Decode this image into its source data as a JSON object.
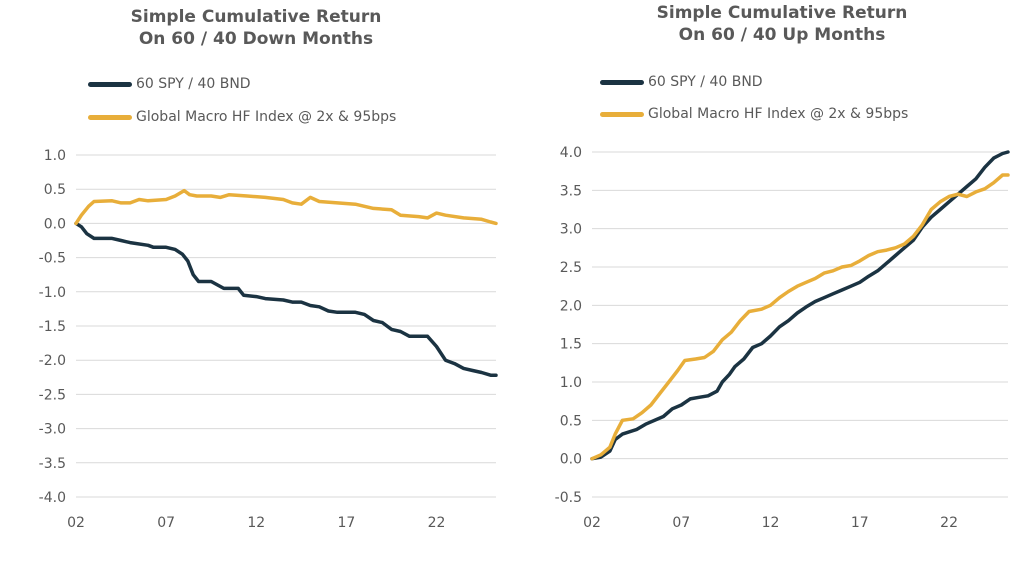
{
  "colors": {
    "navy": "#1b3342",
    "gold": "#e8ae3a",
    "grid": "#d9d9d9",
    "text": "#595959"
  },
  "chart_data": [
    {
      "type": "line",
      "title": "Simple Cumulative Return",
      "subtitle": "On 60 / 40 Down Months",
      "xlabel": "",
      "ylabel": "",
      "xticks": [
        "02",
        "07",
        "12",
        "17",
        "22"
      ],
      "xlim": [
        2,
        25.3
      ],
      "ylim": [
        -4.0,
        1.0
      ],
      "yticks": [
        "1.0",
        "0.5",
        "0.0",
        "-0.5",
        "-1.0",
        "-1.5",
        "-2.0",
        "-2.5",
        "-3.0",
        "-3.5",
        "-4.0"
      ],
      "grid": true,
      "legend_position": "top-left",
      "series": [
        {
          "name": "60 SPY / 40 BND",
          "color": "#1b3342",
          "points": [
            [
              2.0,
              0.0
            ],
            [
              2.3,
              -0.05
            ],
            [
              2.6,
              -0.15
            ],
            [
              3.0,
              -0.22
            ],
            [
              4.0,
              -0.22
            ],
            [
              4.5,
              -0.25
            ],
            [
              5.0,
              -0.28
            ],
            [
              6.0,
              -0.32
            ],
            [
              6.3,
              -0.35
            ],
            [
              7.0,
              -0.35
            ],
            [
              7.5,
              -0.38
            ],
            [
              7.9,
              -0.45
            ],
            [
              8.2,
              -0.55
            ],
            [
              8.5,
              -0.75
            ],
            [
              8.8,
              -0.85
            ],
            [
              9.5,
              -0.85
            ],
            [
              10.2,
              -0.95
            ],
            [
              11.0,
              -0.95
            ],
            [
              11.3,
              -1.05
            ],
            [
              12.0,
              -1.07
            ],
            [
              12.5,
              -1.1
            ],
            [
              13.5,
              -1.12
            ],
            [
              14.0,
              -1.15
            ],
            [
              14.5,
              -1.15
            ],
            [
              15.0,
              -1.2
            ],
            [
              15.5,
              -1.22
            ],
            [
              16.0,
              -1.28
            ],
            [
              16.5,
              -1.3
            ],
            [
              17.5,
              -1.3
            ],
            [
              18.0,
              -1.33
            ],
            [
              18.5,
              -1.42
            ],
            [
              19.0,
              -1.45
            ],
            [
              19.5,
              -1.55
            ],
            [
              20.0,
              -1.58
            ],
            [
              20.5,
              -1.65
            ],
            [
              21.5,
              -1.65
            ],
            [
              22.0,
              -1.8
            ],
            [
              22.5,
              -2.0
            ],
            [
              23.0,
              -2.05
            ],
            [
              23.5,
              -2.12
            ],
            [
              24.0,
              -2.15
            ],
            [
              24.5,
              -2.18
            ],
            [
              25.0,
              -2.22
            ],
            [
              25.3,
              -2.22
            ]
          ]
        },
        {
          "name": "Global Macro HF Index @ 2x & 95bps",
          "color": "#e8ae3a",
          "points": [
            [
              2.0,
              0.0
            ],
            [
              2.3,
              0.12
            ],
            [
              2.7,
              0.25
            ],
            [
              3.0,
              0.32
            ],
            [
              4.0,
              0.33
            ],
            [
              4.5,
              0.3
            ],
            [
              5.0,
              0.3
            ],
            [
              5.5,
              0.35
            ],
            [
              6.0,
              0.33
            ],
            [
              7.0,
              0.35
            ],
            [
              7.5,
              0.4
            ],
            [
              8.0,
              0.48
            ],
            [
              8.3,
              0.42
            ],
            [
              8.7,
              0.4
            ],
            [
              9.5,
              0.4
            ],
            [
              10.0,
              0.38
            ],
            [
              10.5,
              0.42
            ],
            [
              11.5,
              0.4
            ],
            [
              12.5,
              0.38
            ],
            [
              13.5,
              0.35
            ],
            [
              14.0,
              0.3
            ],
            [
              14.5,
              0.28
            ],
            [
              15.0,
              0.38
            ],
            [
              15.5,
              0.32
            ],
            [
              16.5,
              0.3
            ],
            [
              17.5,
              0.28
            ],
            [
              18.5,
              0.22
            ],
            [
              19.5,
              0.2
            ],
            [
              20.0,
              0.12
            ],
            [
              21.0,
              0.1
            ],
            [
              21.5,
              0.08
            ],
            [
              22.0,
              0.15
            ],
            [
              22.5,
              0.12
            ],
            [
              23.5,
              0.08
            ],
            [
              24.5,
              0.06
            ],
            [
              25.0,
              0.02
            ],
            [
              25.3,
              0.0
            ]
          ]
        }
      ]
    },
    {
      "type": "line",
      "title": "Simple Cumulative Return",
      "subtitle": "On 60 / 40 Up Months",
      "xlabel": "",
      "ylabel": "",
      "xticks": [
        "02",
        "07",
        "12",
        "17",
        "22"
      ],
      "xlim": [
        2,
        25.3
      ],
      "ylim": [
        -0.5,
        4.0
      ],
      "yticks": [
        "4.0",
        "3.5",
        "3.0",
        "2.5",
        "2.0",
        "1.5",
        "1.0",
        "0.5",
        "0.0",
        "-0.5"
      ],
      "grid": true,
      "legend_position": "top-left",
      "series": [
        {
          "name": "60 SPY / 40 BND",
          "color": "#1b3342",
          "points": [
            [
              2.0,
              0.0
            ],
            [
              2.5,
              0.02
            ],
            [
              3.0,
              0.1
            ],
            [
              3.3,
              0.25
            ],
            [
              3.7,
              0.32
            ],
            [
              4.5,
              0.38
            ],
            [
              5.0,
              0.45
            ],
            [
              6.0,
              0.55
            ],
            [
              6.5,
              0.65
            ],
            [
              7.0,
              0.7
            ],
            [
              7.5,
              0.78
            ],
            [
              8.0,
              0.8
            ],
            [
              8.5,
              0.82
            ],
            [
              9.0,
              0.88
            ],
            [
              9.3,
              1.0
            ],
            [
              9.7,
              1.1
            ],
            [
              10.0,
              1.2
            ],
            [
              10.5,
              1.3
            ],
            [
              11.0,
              1.45
            ],
            [
              11.5,
              1.5
            ],
            [
              12.0,
              1.6
            ],
            [
              12.5,
              1.72
            ],
            [
              13.0,
              1.8
            ],
            [
              13.5,
              1.9
            ],
            [
              14.0,
              1.98
            ],
            [
              14.5,
              2.05
            ],
            [
              15.0,
              2.1
            ],
            [
              15.5,
              2.15
            ],
            [
              16.0,
              2.2
            ],
            [
              16.5,
              2.25
            ],
            [
              17.0,
              2.3
            ],
            [
              17.5,
              2.38
            ],
            [
              18.0,
              2.45
            ],
            [
              18.5,
              2.55
            ],
            [
              19.0,
              2.65
            ],
            [
              19.5,
              2.75
            ],
            [
              20.0,
              2.85
            ],
            [
              20.5,
              3.02
            ],
            [
              21.0,
              3.15
            ],
            [
              21.5,
              3.25
            ],
            [
              22.0,
              3.35
            ],
            [
              22.5,
              3.45
            ],
            [
              23.0,
              3.55
            ],
            [
              23.5,
              3.65
            ],
            [
              24.0,
              3.8
            ],
            [
              24.5,
              3.92
            ],
            [
              25.0,
              3.98
            ],
            [
              25.3,
              4.0
            ]
          ]
        },
        {
          "name": "Global Macro HF Index @ 2x & 95bps",
          "color": "#e8ae3a",
          "points": [
            [
              2.0,
              0.0
            ],
            [
              2.5,
              0.05
            ],
            [
              3.0,
              0.15
            ],
            [
              3.3,
              0.32
            ],
            [
              3.7,
              0.5
            ],
            [
              4.3,
              0.52
            ],
            [
              4.8,
              0.6
            ],
            [
              5.3,
              0.7
            ],
            [
              5.8,
              0.85
            ],
            [
              6.3,
              1.0
            ],
            [
              6.8,
              1.15
            ],
            [
              7.2,
              1.28
            ],
            [
              7.8,
              1.3
            ],
            [
              8.3,
              1.32
            ],
            [
              8.8,
              1.4
            ],
            [
              9.3,
              1.55
            ],
            [
              9.8,
              1.65
            ],
            [
              10.3,
              1.8
            ],
            [
              10.8,
              1.92
            ],
            [
              11.5,
              1.95
            ],
            [
              12.0,
              2.0
            ],
            [
              12.5,
              2.1
            ],
            [
              13.0,
              2.18
            ],
            [
              13.5,
              2.25
            ],
            [
              14.0,
              2.3
            ],
            [
              14.5,
              2.35
            ],
            [
              15.0,
              2.42
            ],
            [
              15.5,
              2.45
            ],
            [
              16.0,
              2.5
            ],
            [
              16.5,
              2.52
            ],
            [
              17.0,
              2.58
            ],
            [
              17.5,
              2.65
            ],
            [
              18.0,
              2.7
            ],
            [
              18.5,
              2.72
            ],
            [
              19.0,
              2.75
            ],
            [
              19.5,
              2.8
            ],
            [
              20.0,
              2.9
            ],
            [
              20.5,
              3.05
            ],
            [
              21.0,
              3.25
            ],
            [
              21.5,
              3.35
            ],
            [
              22.0,
              3.42
            ],
            [
              22.5,
              3.45
            ],
            [
              23.0,
              3.42
            ],
            [
              23.5,
              3.48
            ],
            [
              24.0,
              3.52
            ],
            [
              24.5,
              3.6
            ],
            [
              25.0,
              3.7
            ],
            [
              25.3,
              3.7
            ]
          ]
        }
      ]
    }
  ]
}
